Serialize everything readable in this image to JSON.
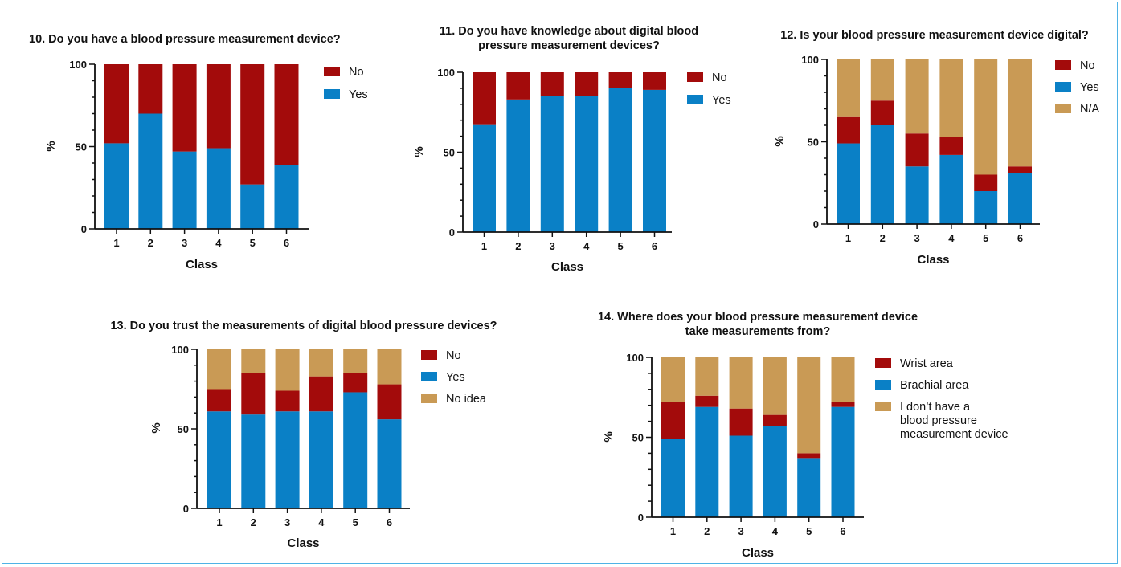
{
  "colors": {
    "no": "#a30b0b",
    "yes": "#0a80c6",
    "other": "#c99a55",
    "axis": "#111111"
  },
  "chart_data": [
    {
      "type": "bar",
      "stacked": true,
      "title": [
        "10. Do you have a blood pressure measurement device?"
      ],
      "xlabel": "Class",
      "ylabel": "%",
      "ylim": [
        0,
        100
      ],
      "yticks": [
        0,
        50,
        100
      ],
      "categories": [
        "1",
        "2",
        "3",
        "4",
        "5",
        "6"
      ],
      "series": [
        {
          "name": "Yes",
          "color": "yes",
          "values": [
            52,
            70,
            47,
            49,
            27,
            39
          ]
        },
        {
          "name": "No",
          "color": "no",
          "values": [
            48,
            30,
            53,
            51,
            73,
            61
          ]
        }
      ],
      "legend": [
        "No",
        "Yes"
      ],
      "legend_colors": [
        "no",
        "yes"
      ]
    },
    {
      "type": "bar",
      "stacked": true,
      "title": [
        "11. Do you have knowledge about digital blood",
        "pressure measurement devices?"
      ],
      "xlabel": "Class",
      "ylabel": "%",
      "ylim": [
        0,
        100
      ],
      "yticks": [
        0,
        50,
        100
      ],
      "categories": [
        "1",
        "2",
        "3",
        "4",
        "5",
        "6"
      ],
      "series": [
        {
          "name": "Yes",
          "color": "yes",
          "values": [
            67,
            83,
            85,
            85,
            90,
            89
          ]
        },
        {
          "name": "No",
          "color": "no",
          "values": [
            33,
            17,
            15,
            15,
            10,
            11
          ]
        }
      ],
      "legend": [
        "No",
        "Yes"
      ],
      "legend_colors": [
        "no",
        "yes"
      ]
    },
    {
      "type": "bar",
      "stacked": true,
      "title": [
        "12. Is your blood pressure measurement device digital?"
      ],
      "xlabel": "Class",
      "ylabel": "%",
      "ylim": [
        0,
        100
      ],
      "yticks": [
        0,
        50,
        100
      ],
      "categories": [
        "1",
        "2",
        "3",
        "4",
        "5",
        "6"
      ],
      "series": [
        {
          "name": "Yes",
          "color": "yes",
          "values": [
            49,
            60,
            35,
            42,
            20,
            31
          ]
        },
        {
          "name": "No",
          "color": "no",
          "values": [
            16,
            15,
            20,
            11,
            10,
            4
          ]
        },
        {
          "name": "N/A",
          "color": "other",
          "values": [
            35,
            25,
            45,
            47,
            70,
            65
          ]
        }
      ],
      "legend": [
        "No",
        "Yes",
        "N/A"
      ],
      "legend_colors": [
        "no",
        "yes",
        "other"
      ]
    },
    {
      "type": "bar",
      "stacked": true,
      "title": [
        "13. Do you trust the measurements of digital blood pressure devices?"
      ],
      "xlabel": "Class",
      "ylabel": "%",
      "ylim": [
        0,
        100
      ],
      "yticks": [
        0,
        50,
        100
      ],
      "categories": [
        "1",
        "2",
        "3",
        "4",
        "5",
        "6"
      ],
      "series": [
        {
          "name": "Yes",
          "color": "yes",
          "values": [
            61,
            59,
            61,
            61,
            73,
            56
          ]
        },
        {
          "name": "No",
          "color": "no",
          "values": [
            14,
            26,
            13,
            22,
            12,
            22
          ]
        },
        {
          "name": "No idea",
          "color": "other",
          "values": [
            25,
            15,
            26,
            17,
            15,
            22
          ]
        }
      ],
      "legend": [
        "No",
        "Yes",
        "No idea"
      ],
      "legend_colors": [
        "no",
        "yes",
        "other"
      ]
    },
    {
      "type": "bar",
      "stacked": true,
      "title": [
        "14. Where does your blood pressure measurement device",
        "take measurements from?"
      ],
      "xlabel": "Class",
      "ylabel": "%",
      "ylim": [
        0,
        100
      ],
      "yticks": [
        0,
        50,
        100
      ],
      "categories": [
        "1",
        "2",
        "3",
        "4",
        "5",
        "6"
      ],
      "series": [
        {
          "name": "Brachial area",
          "color": "yes",
          "values": [
            49,
            69,
            51,
            57,
            37,
            69
          ]
        },
        {
          "name": "Wrist area",
          "color": "no",
          "values": [
            23,
            7,
            17,
            7,
            3,
            3
          ]
        },
        {
          "name": "I don't have a blood pressure measurement device",
          "color": "other",
          "values": [
            28,
            24,
            32,
            36,
            60,
            28
          ]
        }
      ],
      "legend": [
        "Wrist area",
        "Brachial area",
        "I don’t have a blood pressure measurement device"
      ],
      "legend_lines": [
        [
          "Wrist area"
        ],
        [
          "Brachial area"
        ],
        [
          "I don’t have a",
          "blood pressure",
          "measurement device"
        ]
      ],
      "legend_colors": [
        "no",
        "yes",
        "other"
      ]
    }
  ]
}
